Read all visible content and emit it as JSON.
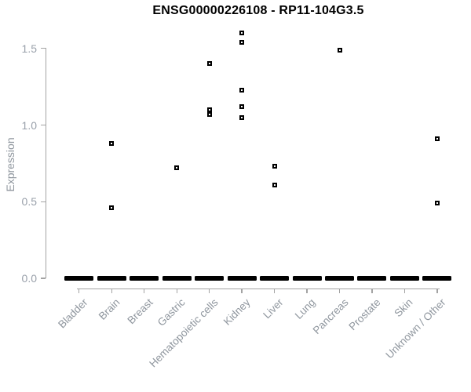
{
  "chart_data": {
    "type": "scatter",
    "subtype": "strip-plot-with-collapsed-boxplot-bars",
    "title": "ENSG00000226108 - RP11-104G3.5",
    "xlabel": "",
    "ylabel": "Expression",
    "ylim": [
      0,
      1.65
    ],
    "yticks": [
      {
        "value": 0.0,
        "label": "0.0"
      },
      {
        "value": 0.5,
        "label": "0.5"
      },
      {
        "value": 1.0,
        "label": "1.0"
      },
      {
        "value": 1.5,
        "label": "1.5"
      }
    ],
    "grid": false,
    "legend": "none",
    "categories": [
      "Bladder",
      "Brain",
      "Breast",
      "Gastric",
      "Hematopoietic cells",
      "Kidney",
      "Liver",
      "Lung",
      "Pancreas",
      "Prostate",
      "Skin",
      "Unknown / Other"
    ],
    "series": [
      {
        "category": "Bladder",
        "points": [],
        "zero_bar_value": 0.0
      },
      {
        "category": "Brain",
        "points": [
          0.88,
          0.46
        ],
        "zero_bar_value": 0.0
      },
      {
        "category": "Breast",
        "points": [],
        "zero_bar_value": 0.0
      },
      {
        "category": "Gastric",
        "points": [
          0.72
        ],
        "zero_bar_value": 0.0
      },
      {
        "category": "Hematopoietic cells",
        "points": [
          1.4,
          1.1,
          1.07
        ],
        "zero_bar_value": 0.0
      },
      {
        "category": "Kidney",
        "points": [
          1.6,
          1.54,
          1.23,
          1.12,
          1.05
        ],
        "zero_bar_value": 0.0
      },
      {
        "category": "Liver",
        "points": [
          0.73,
          0.61
        ],
        "zero_bar_value": 0.0
      },
      {
        "category": "Lung",
        "points": [],
        "zero_bar_value": 0.0
      },
      {
        "category": "Pancreas",
        "points": [
          1.49
        ],
        "zero_bar_value": 0.0
      },
      {
        "category": "Prostate",
        "points": [],
        "zero_bar_value": 0.0
      },
      {
        "category": "Skin",
        "points": [],
        "zero_bar_value": 0.0
      },
      {
        "category": "Unknown / Other",
        "points": [
          0.91,
          0.49
        ],
        "zero_bar_value": 0.0
      }
    ],
    "colors": {
      "point": "#000000",
      "zero_bar": "#000000",
      "axis_line": "#a3a3a3",
      "tick_label": "#99a0aa",
      "axis_label": "#8f969e",
      "title": "#000000",
      "background": "#ffffff"
    }
  }
}
